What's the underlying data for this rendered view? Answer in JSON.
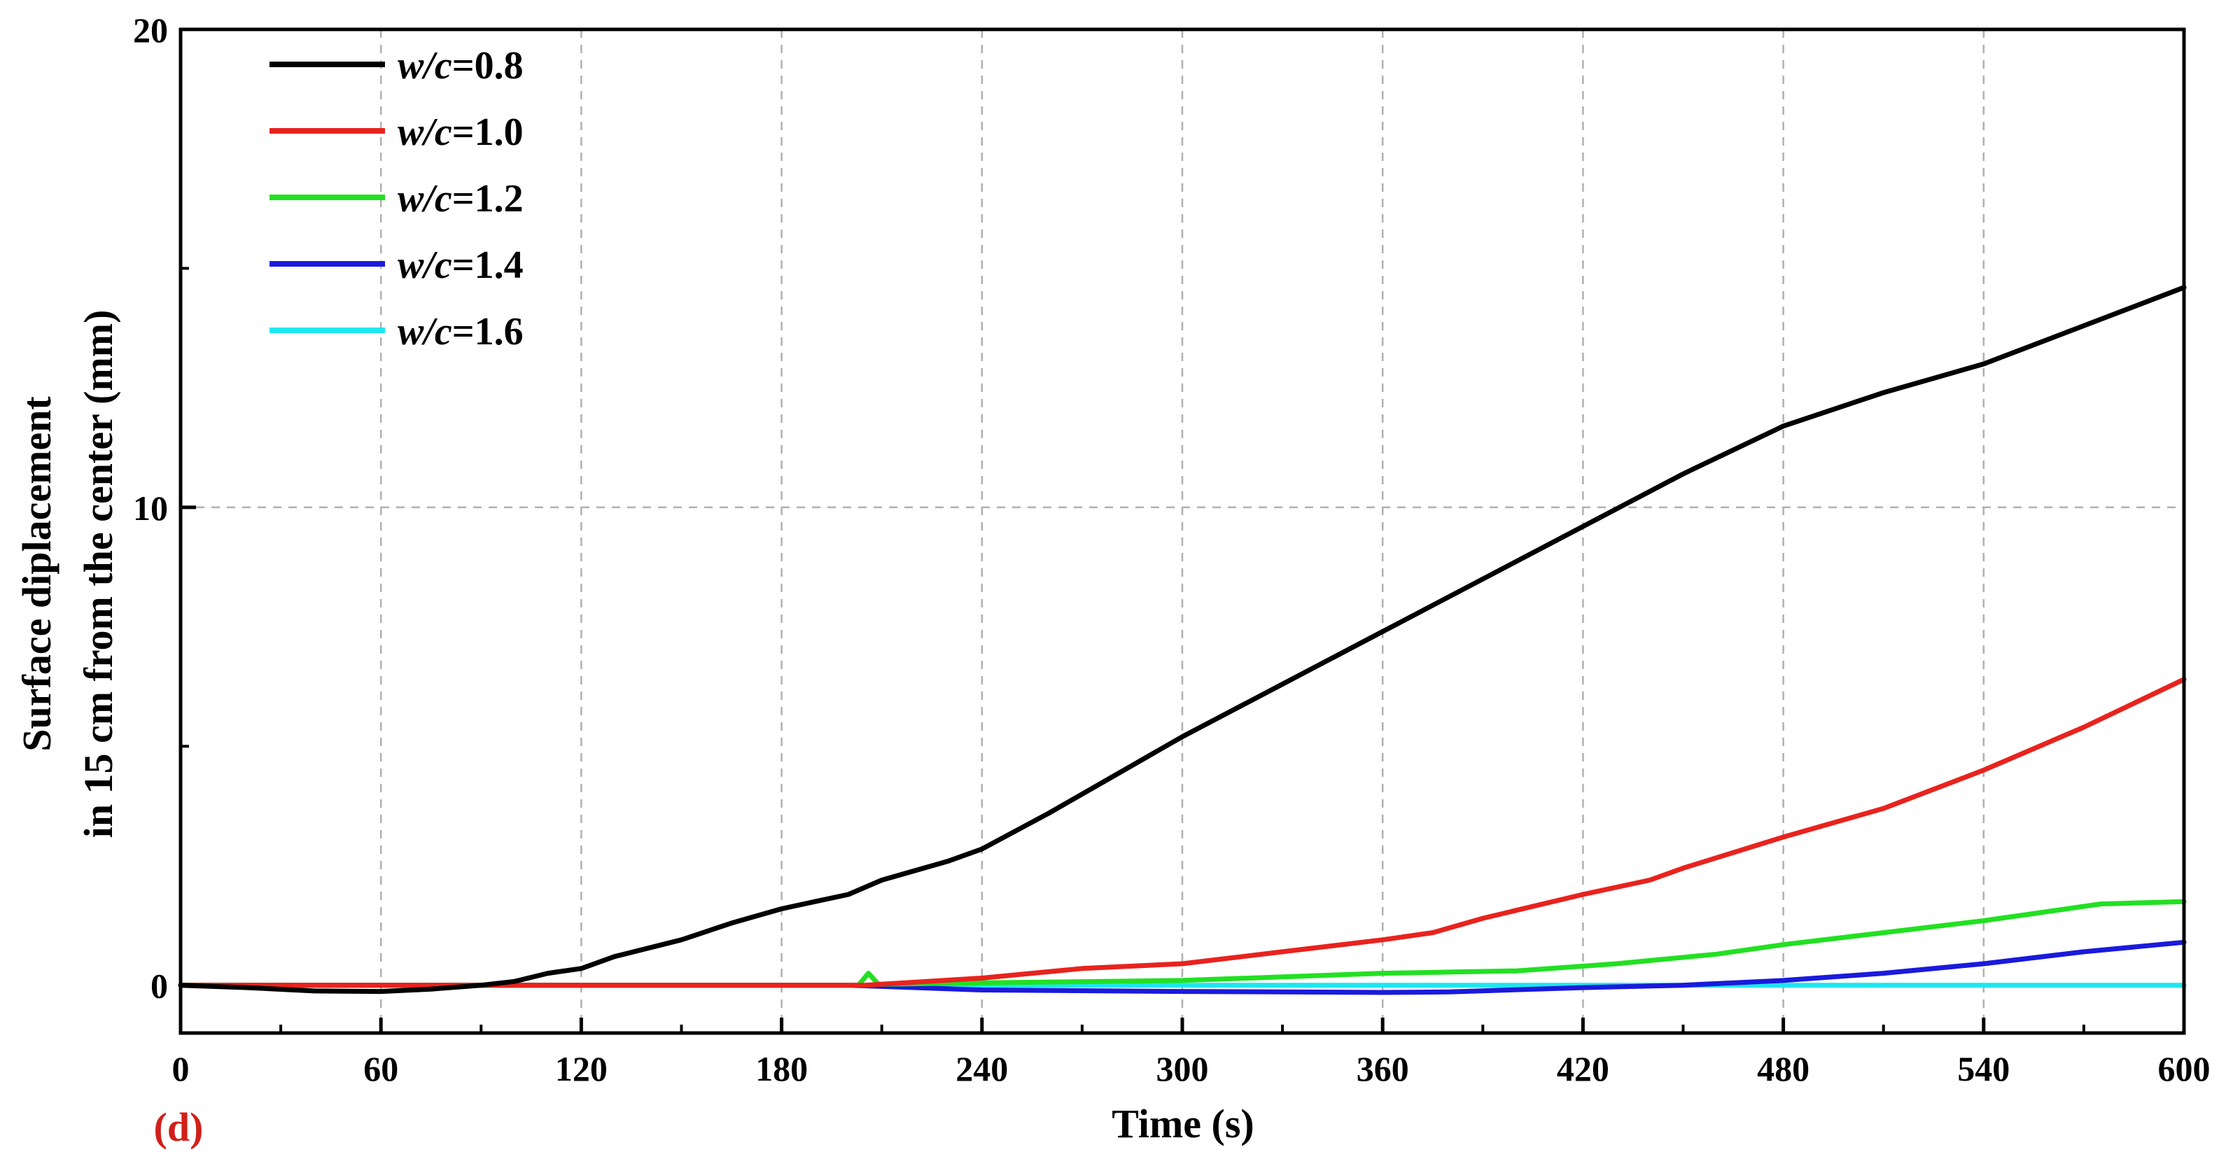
{
  "chart_data": {
    "type": "line",
    "panel_label": "(d)",
    "xlabel": "Time (s)",
    "ylabel_line1": "Surface diplacement",
    "ylabel_line2": "in 15 cm from the center (mm)",
    "xlim": [
      0,
      600
    ],
    "ylim": [
      -1,
      20
    ],
    "x_ticks": [
      0,
      60,
      120,
      180,
      240,
      300,
      360,
      420,
      480,
      540,
      600
    ],
    "y_ticks": [
      0,
      10,
      20
    ],
    "grid": true,
    "legend_position": "top-left",
    "series": [
      {
        "name": "w/c=0.8",
        "name_italic": "w/c",
        "name_value": "=0.8",
        "color": "#000000",
        "points": [
          [
            0,
            0
          ],
          [
            20,
            -0.05
          ],
          [
            40,
            -0.12
          ],
          [
            60,
            -0.13
          ],
          [
            75,
            -0.08
          ],
          [
            90,
            0.0
          ],
          [
            100,
            0.08
          ],
          [
            110,
            0.25
          ],
          [
            120,
            0.35
          ],
          [
            130,
            0.6
          ],
          [
            150,
            0.95
          ],
          [
            165,
            1.3
          ],
          [
            180,
            1.6
          ],
          [
            190,
            1.75
          ],
          [
            200,
            1.9
          ],
          [
            210,
            2.2
          ],
          [
            230,
            2.6
          ],
          [
            240,
            2.85
          ],
          [
            260,
            3.6
          ],
          [
            280,
            4.4
          ],
          [
            300,
            5.2
          ],
          [
            330,
            6.3
          ],
          [
            360,
            7.4
          ],
          [
            390,
            8.5
          ],
          [
            420,
            9.6
          ],
          [
            450,
            10.7
          ],
          [
            480,
            11.7
          ],
          [
            510,
            12.4
          ],
          [
            540,
            13.0
          ],
          [
            570,
            13.8
          ],
          [
            600,
            14.6
          ]
        ]
      },
      {
        "name": "w/c=1.0",
        "name_italic": "w/c",
        "name_value": "=1.0",
        "color": "#e8231e",
        "points": [
          [
            0,
            0
          ],
          [
            205,
            0.0
          ],
          [
            240,
            0.15
          ],
          [
            270,
            0.35
          ],
          [
            300,
            0.45
          ],
          [
            330,
            0.7
          ],
          [
            360,
            0.95
          ],
          [
            375,
            1.1
          ],
          [
            390,
            1.4
          ],
          [
            420,
            1.9
          ],
          [
            440,
            2.2
          ],
          [
            450,
            2.45
          ],
          [
            480,
            3.1
          ],
          [
            510,
            3.7
          ],
          [
            540,
            4.5
          ],
          [
            570,
            5.4
          ],
          [
            600,
            6.4
          ]
        ]
      },
      {
        "name": "w/c=1.2",
        "name_italic": "w/c",
        "name_value": "=1.2",
        "color": "#22e022",
        "points": [
          [
            0,
            0
          ],
          [
            203,
            0.0
          ],
          [
            206,
            0.25
          ],
          [
            209,
            0.02
          ],
          [
            240,
            0.05
          ],
          [
            300,
            0.1
          ],
          [
            360,
            0.25
          ],
          [
            400,
            0.3
          ],
          [
            430,
            0.45
          ],
          [
            460,
            0.65
          ],
          [
            480,
            0.85
          ],
          [
            510,
            1.1
          ],
          [
            540,
            1.35
          ],
          [
            560,
            1.55
          ],
          [
            575,
            1.7
          ],
          [
            600,
            1.75
          ]
        ]
      },
      {
        "name": "w/c=1.4",
        "name_italic": "w/c",
        "name_value": "=1.4",
        "color": "#1a1adc",
        "points": [
          [
            0,
            0
          ],
          [
            200,
            0.0
          ],
          [
            240,
            -0.1
          ],
          [
            300,
            -0.13
          ],
          [
            360,
            -0.15
          ],
          [
            380,
            -0.14
          ],
          [
            420,
            -0.05
          ],
          [
            450,
            0.0
          ],
          [
            480,
            0.1
          ],
          [
            510,
            0.25
          ],
          [
            540,
            0.45
          ],
          [
            570,
            0.7
          ],
          [
            600,
            0.9
          ]
        ]
      },
      {
        "name": "w/c=1.6",
        "name_italic": "w/c",
        "name_value": "=1.6",
        "color": "#1ee6f0",
        "points": [
          [
            0,
            0
          ],
          [
            300,
            0.0
          ],
          [
            600,
            0.0
          ]
        ]
      }
    ]
  }
}
